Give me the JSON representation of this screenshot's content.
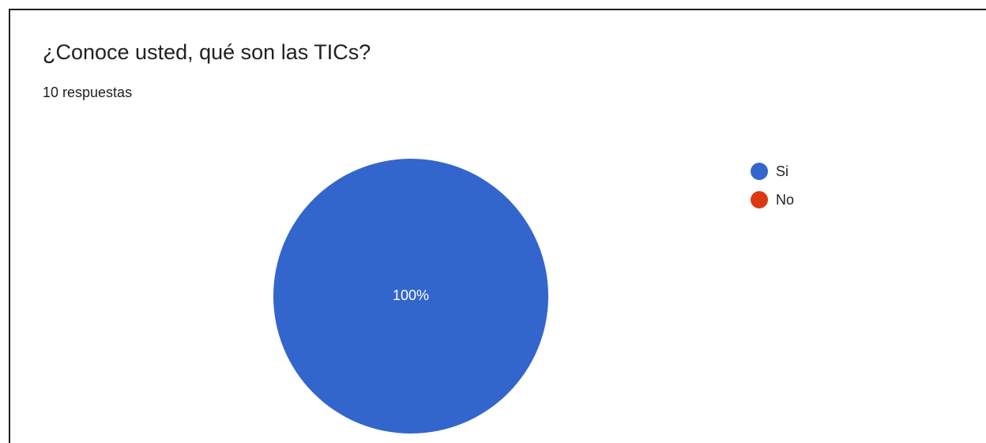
{
  "title": "¿Conoce usted, qué son las TICs?",
  "responses": "10 respuestas",
  "chart_data": {
    "type": "pie",
    "categories": [
      "Si",
      "No"
    ],
    "values": [
      100,
      0
    ],
    "data_labels": [
      "100%",
      ""
    ],
    "colors": [
      "#3366cc",
      "#dc3912"
    ],
    "legend_position": "right",
    "label_color": "#ffffff"
  }
}
